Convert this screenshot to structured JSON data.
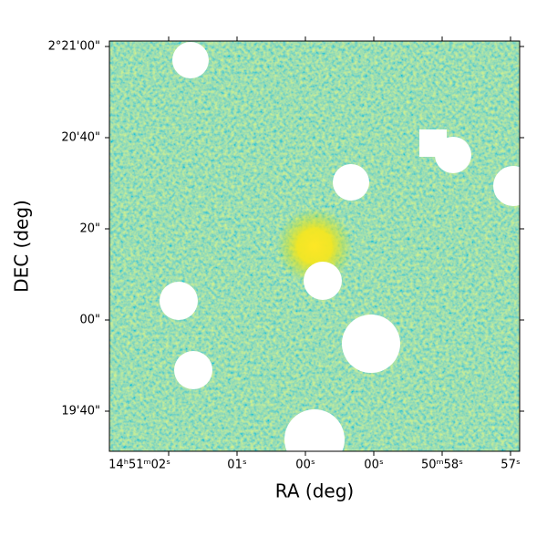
{
  "chart_data": {
    "type": "image",
    "xlabel": "RA (deg)",
    "ylabel": "DEC (deg)",
    "xtick_labels": [
      "14ʰ51ᵐ02ˢ",
      "01ˢ",
      "00ˢ",
      "00ˢ",
      "50ᵐ58ˢ",
      "57ˢ"
    ],
    "ytick_labels": [
      "2°21'00\"",
      "20'40\"",
      "20\"",
      "00\"",
      "19'40\""
    ],
    "colormap": "viridis"
  }
}
